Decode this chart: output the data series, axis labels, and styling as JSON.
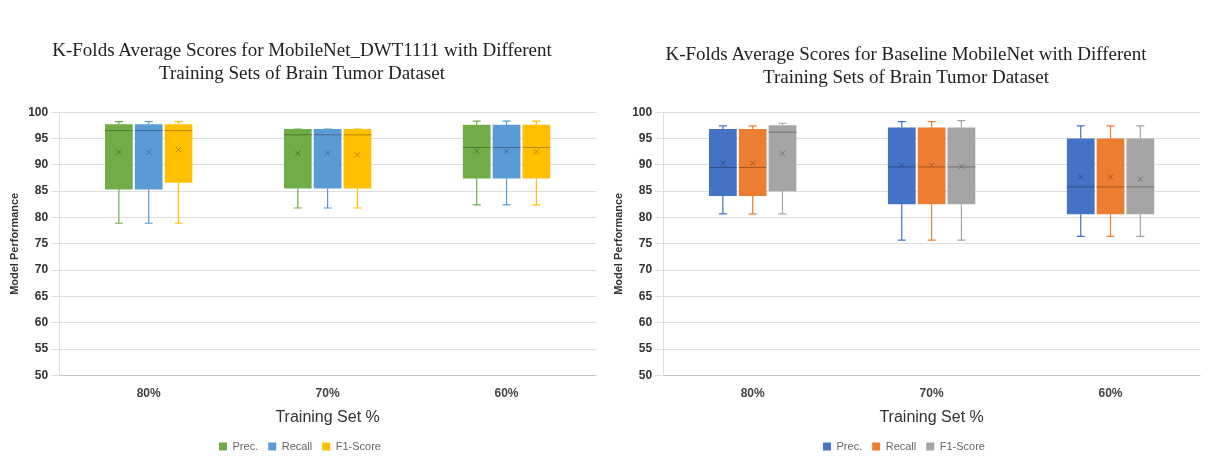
{
  "chart_data": [
    {
      "type": "box",
      "title": "K-Folds Average Scores for MobileNet_DWT1111 with Different Training Sets of Brain Tumor Dataset",
      "xlabel": "Training Set %",
      "ylabel": "Model Performance",
      "categories": [
        "80%",
        "70%",
        "60%"
      ],
      "ylim": [
        50,
        100
      ],
      "yticks": [
        50,
        55,
        60,
        65,
        70,
        75,
        80,
        85,
        90,
        95,
        100
      ],
      "grid": "y",
      "legend": "bottom",
      "marker": "cross",
      "series": [
        {
          "name": "Prec.",
          "color": "#70ad47",
          "boxes": [
            {
              "low": 78.9,
              "q1": 85.3,
              "median": 96.5,
              "q3": 97.7,
              "high": 98.2,
              "mean": 92.4
            },
            {
              "low": 81.8,
              "q1": 85.5,
              "median": 95.7,
              "q3": 96.8,
              "high": 96.8,
              "mean": 92.2
            },
            {
              "low": 82.4,
              "q1": 87.4,
              "median": 93.3,
              "q3": 97.6,
              "high": 98.3,
              "mean": 92.6
            }
          ]
        },
        {
          "name": "Recall",
          "color": "#5b9bd5",
          "boxes": [
            {
              "low": 78.9,
              "q1": 85.3,
              "median": 96.5,
              "q3": 97.7,
              "high": 98.2,
              "mean": 92.4
            },
            {
              "low": 81.8,
              "q1": 85.5,
              "median": 95.7,
              "q3": 96.8,
              "high": 96.8,
              "mean": 92.2
            },
            {
              "low": 82.4,
              "q1": 87.4,
              "median": 93.3,
              "q3": 97.6,
              "high": 98.3,
              "mean": 92.6
            }
          ]
        },
        {
          "name": "F1-Score",
          "color": "#ffc000",
          "boxes": [
            {
              "low": 78.9,
              "q1": 86.6,
              "median": 96.5,
              "q3": 97.7,
              "high": 98.2,
              "mean": 92.9
            },
            {
              "low": 81.8,
              "q1": 85.5,
              "median": 95.7,
              "q3": 96.8,
              "high": 96.8,
              "mean": 91.9
            },
            {
              "low": 82.4,
              "q1": 87.4,
              "median": 93.3,
              "q3": 97.6,
              "high": 98.3,
              "mean": 92.5
            }
          ]
        }
      ]
    },
    {
      "type": "box",
      "title": "K-Folds Average Scores for Baseline MobileNet with Different Training Sets of Brain Tumor Dataset",
      "xlabel": "Training Set %",
      "ylabel": "Model Performance",
      "categories": [
        "80%",
        "70%",
        "60%"
      ],
      "ylim": [
        50,
        100
      ],
      "yticks": [
        50,
        55,
        60,
        65,
        70,
        75,
        80,
        85,
        90,
        95,
        100
      ],
      "grid": "y",
      "legend": "bottom",
      "marker": "cross",
      "series": [
        {
          "name": "Prec.",
          "color": "#4472c4",
          "boxes": [
            {
              "low": 80.7,
              "q1": 84.1,
              "median": 89.5,
              "q3": 96.8,
              "high": 97.4,
              "mean": 90.3
            },
            {
              "low": 75.7,
              "q1": 82.5,
              "median": 89.6,
              "q3": 97.1,
              "high": 98.2,
              "mean": 89.9
            },
            {
              "low": 76.4,
              "q1": 80.6,
              "median": 85.8,
              "q3": 95.0,
              "high": 97.4,
              "mean": 87.7
            }
          ]
        },
        {
          "name": "Recall",
          "color": "#ed7d31",
          "boxes": [
            {
              "low": 80.7,
              "q1": 84.1,
              "median": 89.5,
              "q3": 96.8,
              "high": 97.4,
              "mean": 90.3
            },
            {
              "low": 75.7,
              "q1": 82.5,
              "median": 89.6,
              "q3": 97.1,
              "high": 98.2,
              "mean": 89.9
            },
            {
              "low": 76.4,
              "q1": 80.6,
              "median": 85.8,
              "q3": 95.0,
              "high": 97.4,
              "mean": 87.7
            }
          ]
        },
        {
          "name": "F1-Score",
          "color": "#a5a5a5",
          "boxes": [
            {
              "low": 80.7,
              "q1": 85.0,
              "median": 96.2,
              "q3": 97.5,
              "high": 97.9,
              "mean": 92.2
            },
            {
              "low": 75.7,
              "q1": 82.5,
              "median": 89.6,
              "q3": 97.1,
              "high": 98.4,
              "mean": 89.7
            },
            {
              "low": 76.4,
              "q1": 80.6,
              "median": 85.8,
              "q3": 95.0,
              "high": 97.4,
              "mean": 87.3
            }
          ]
        }
      ]
    }
  ]
}
